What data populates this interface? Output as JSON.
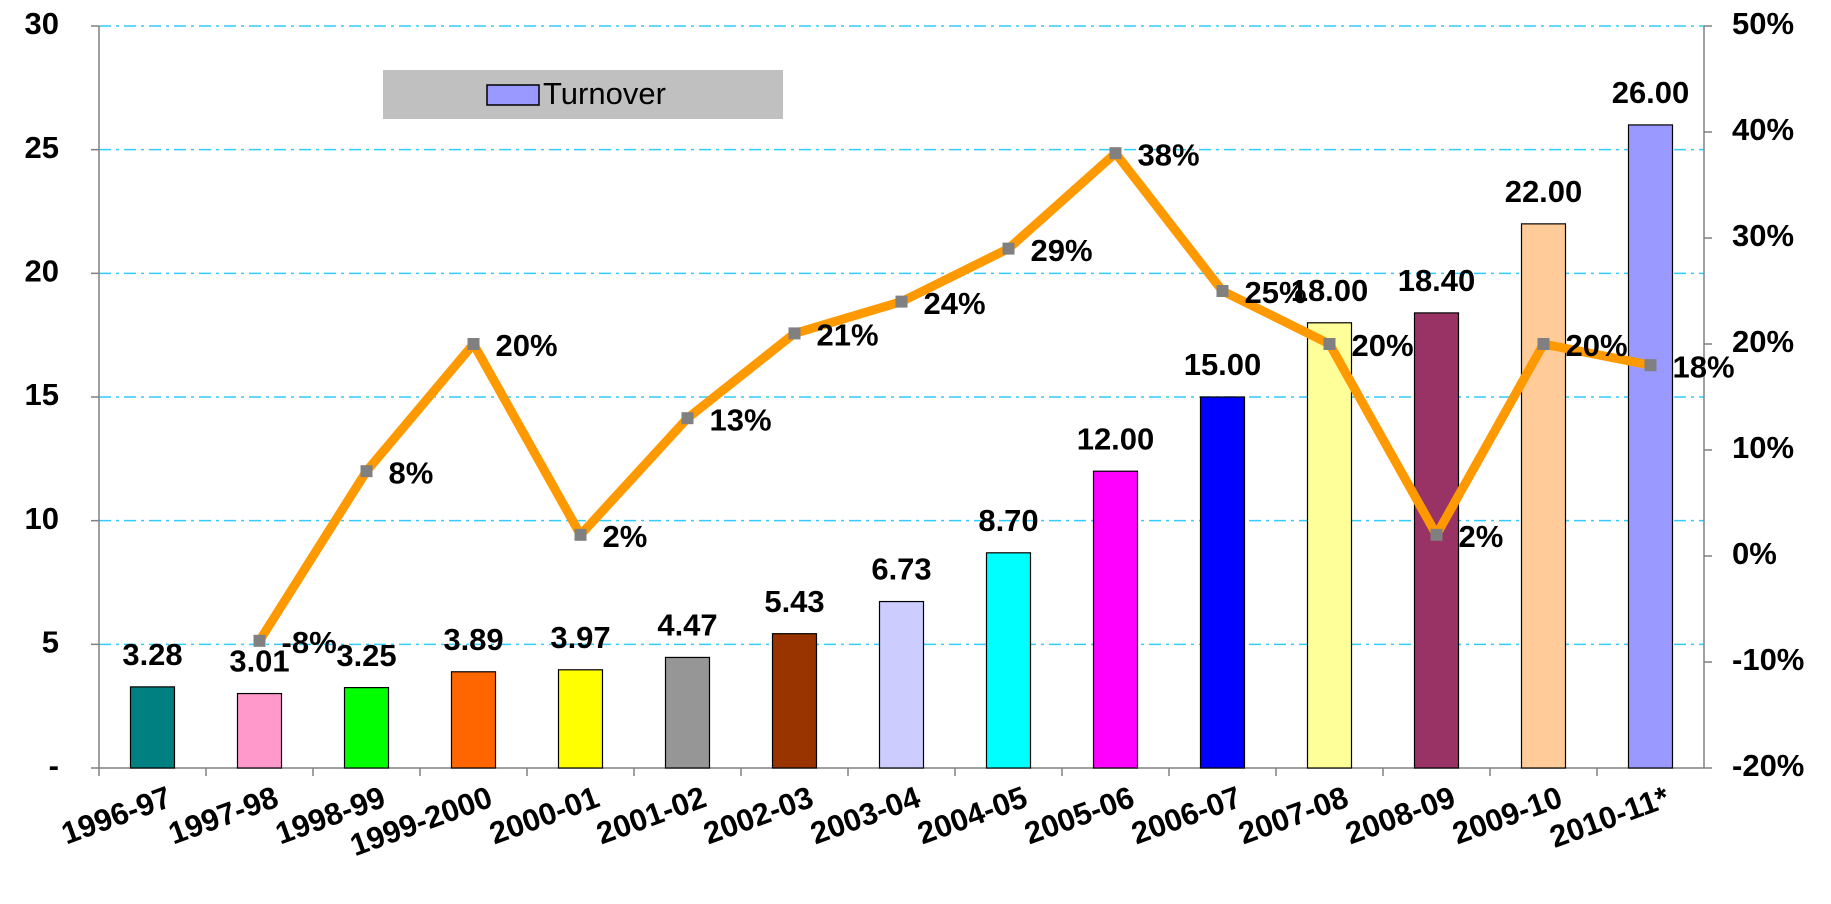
{
  "chart_data": {
    "type": "bar",
    "categories": [
      "1996-97",
      "1997-98",
      "1998-99",
      "1999-2000",
      "2000-01",
      "2001-02",
      "2002-03",
      "2003-04",
      "2004-05",
      "2005-06",
      "2006-07",
      "2007-08",
      "2008-09",
      "2009-10",
      "2010-11*"
    ],
    "series": [
      {
        "name": "Turnover",
        "type": "bar",
        "color": "#9999ff",
        "colors": [
          "#008080",
          "#ff99cc",
          "#00ff00",
          "#ff6600",
          "#ffff00",
          "#969696",
          "#993300",
          "#ccccff",
          "#00ffff",
          "#ff00ff",
          "#0000ff",
          "#ffff99",
          "#993366",
          "#ffcc99",
          "#9999ff"
        ],
        "values": [
          3.28,
          3.01,
          3.25,
          3.89,
          3.97,
          4.47,
          5.43,
          6.73,
          8.7,
          12,
          15,
          18,
          18.4,
          22,
          26
        ],
        "value_labels": [
          "3.28",
          "3.01",
          "3.25",
          "3.89",
          "3.97",
          "4.47",
          "5.43",
          "6.73",
          "8.70",
          "12.00",
          "15.00",
          "18.00",
          "18.40",
          "22.00",
          "26.00"
        ]
      },
      {
        "type": "line",
        "axis": "y2",
        "color": "#ff9900",
        "marker_color": "#808080",
        "values": [
          null,
          -8,
          8,
          20,
          2,
          13,
          21,
          24,
          29,
          38,
          25,
          20,
          2,
          20,
          18
        ],
        "value_labels": [
          null,
          "-8%",
          "8%",
          "20%",
          "2%",
          "13%",
          "21%",
          "24%",
          "29%",
          "38%",
          "25%",
          "20%",
          "2%",
          "20%",
          "18%"
        ]
      }
    ],
    "ylim": [
      0,
      30
    ],
    "yticks": [
      {
        "value": 0,
        "label": "-"
      },
      5,
      10,
      15,
      20,
      25,
      30
    ],
    "y2lim": [
      -20,
      50
    ],
    "y2ticks": [
      {
        "value": -20,
        "label": "-20%"
      },
      {
        "value": -10,
        "label": "-10%"
      },
      {
        "value": 0,
        "label": "0%"
      },
      {
        "value": 10,
        "label": "10%"
      },
      {
        "value": 20,
        "label": "20%"
      },
      {
        "value": 30,
        "label": "30%"
      },
      {
        "value": 40,
        "label": "40%"
      },
      {
        "value": 50,
        "label": "50%"
      }
    ],
    "grid": true,
    "legend": "top-left"
  }
}
